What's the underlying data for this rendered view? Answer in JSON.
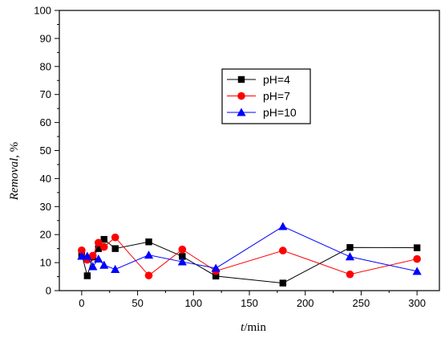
{
  "chart_data": {
    "type": "line",
    "title": "",
    "xlabel_italic": "t",
    "xlabel_unit": "/min",
    "ylabel_italic": "Removal",
    "ylabel_unit": ", %",
    "xlim": [
      -20,
      320
    ],
    "ylim": [
      0,
      100
    ],
    "xticks": [
      0,
      50,
      100,
      150,
      200,
      250,
      300
    ],
    "yticks": [
      0,
      10,
      20,
      30,
      40,
      50,
      60,
      70,
      80,
      90,
      100
    ],
    "grid": false,
    "legend_position": "upper-center",
    "series": [
      {
        "name": "pH=4",
        "color": "#000000",
        "marker": "square",
        "x": [
          0,
          5,
          10,
          15,
          20,
          30,
          60,
          90,
          120,
          180,
          240,
          300
        ],
        "y": [
          13.0,
          5.3,
          12.0,
          15.0,
          18.3,
          15.0,
          17.4,
          12.2,
          5.2,
          2.7,
          15.4,
          15.3
        ]
      },
      {
        "name": "pH=7",
        "color": "#ff0000",
        "marker": "circle",
        "x": [
          0,
          5,
          10,
          15,
          20,
          30,
          60,
          90,
          120,
          180,
          240,
          300
        ],
        "y": [
          14.4,
          11.0,
          12.5,
          17.1,
          15.6,
          19.0,
          5.4,
          14.7,
          7.0,
          14.3,
          5.8,
          11.3
        ]
      },
      {
        "name": "pH=10",
        "color": "#0000ff",
        "marker": "triangle",
        "x": [
          0,
          5,
          10,
          15,
          20,
          30,
          60,
          90,
          120,
          180,
          240,
          300
        ],
        "y": [
          12.3,
          12.3,
          8.6,
          11.3,
          9.1,
          7.6,
          12.7,
          10.3,
          8.0,
          22.9,
          12.1,
          6.9
        ]
      }
    ]
  }
}
